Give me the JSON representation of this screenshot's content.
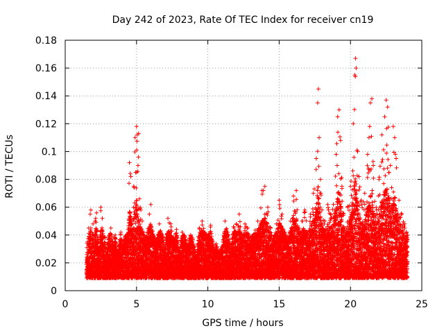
{
  "chart_data": {
    "type": "scatter",
    "title": "Day 242 of 2023, Rate Of TEC Index for receiver cn19",
    "xlabel": "GPS time / hours",
    "ylabel": "ROTI / TECUs",
    "xlim": [
      0,
      25
    ],
    "ylim": [
      0,
      0.18
    ],
    "xticks": [
      0,
      5,
      10,
      15,
      20,
      25
    ],
    "xtick_labels": [
      "0",
      "5",
      "10",
      "15",
      "20",
      "25"
    ],
    "yticks": [
      0,
      0.02,
      0.04,
      0.06,
      0.08,
      0.1,
      0.12,
      0.14,
      0.16,
      0.18
    ],
    "ytick_labels": [
      "0",
      "0.02",
      "0.04",
      "0.06",
      "0.08",
      "0.1",
      "0.12",
      "0.14",
      "0.16",
      "0.18"
    ],
    "grid": true,
    "marker": "+",
    "color": "#ff0000",
    "x_range_of_data": [
      1.5,
      24.0
    ],
    "series": [
      {
        "name": "ROTI",
        "points": [
          [
            1.5,
            0.02
          ],
          [
            1.55,
            0.035
          ],
          [
            1.6,
            0.015
          ],
          [
            1.65,
            0.045
          ],
          [
            1.7,
            0.028
          ],
          [
            1.75,
            0.055
          ],
          [
            1.8,
            0.058
          ],
          [
            1.85,
            0.012
          ],
          [
            1.9,
            0.04
          ],
          [
            1.95,
            0.048
          ],
          [
            2.0,
            0.022
          ],
          [
            2.1,
            0.05
          ],
          [
            2.2,
            0.056
          ],
          [
            2.3,
            0.03
          ],
          [
            2.4,
            0.018
          ],
          [
            2.5,
            0.06
          ],
          [
            2.6,
            0.052
          ],
          [
            2.7,
            0.025
          ],
          [
            2.8,
            0.038
          ],
          [
            2.9,
            0.014
          ],
          [
            3.0,
            0.033
          ],
          [
            3.2,
            0.045
          ],
          [
            3.4,
            0.028
          ],
          [
            3.5,
            0.04
          ],
          [
            3.7,
            0.02
          ],
          [
            3.9,
            0.042
          ],
          [
            4.0,
            0.03
          ],
          [
            4.2,
            0.038
          ],
          [
            4.4,
            0.044
          ],
          [
            4.5,
            0.092
          ],
          [
            4.6,
            0.082
          ],
          [
            4.7,
            0.048
          ],
          [
            4.8,
            0.075
          ],
          [
            4.9,
            0.11
          ],
          [
            5.0,
            0.118
          ],
          [
            5.05,
            0.112
          ],
          [
            5.1,
            0.09
          ],
          [
            5.15,
            0.113
          ],
          [
            5.2,
            0.066
          ],
          [
            5.3,
            0.058
          ],
          [
            5.4,
            0.05
          ],
          [
            5.5,
            0.042
          ],
          [
            5.7,
            0.035
          ],
          [
            5.9,
            0.055
          ],
          [
            6.0,
            0.062
          ],
          [
            6.2,
            0.038
          ],
          [
            6.4,
            0.03
          ],
          [
            6.6,
            0.048
          ],
          [
            6.8,
            0.04
          ],
          [
            7.0,
            0.025
          ],
          [
            7.2,
            0.052
          ],
          [
            7.4,
            0.048
          ],
          [
            7.6,
            0.035
          ],
          [
            7.8,
            0.044
          ],
          [
            8.0,
            0.02
          ],
          [
            8.2,
            0.042
          ],
          [
            8.4,
            0.036
          ],
          [
            8.6,
            0.028
          ],
          [
            8.8,
            0.04
          ],
          [
            9.0,
            0.032
          ],
          [
            9.2,
            0.018
          ],
          [
            9.4,
            0.045
          ],
          [
            9.6,
            0.05
          ],
          [
            9.8,
            0.042
          ],
          [
            10.0,
            0.038
          ],
          [
            10.2,
            0.047
          ],
          [
            10.4,
            0.026
          ],
          [
            10.6,
            0.03
          ],
          [
            10.8,
            0.022
          ],
          [
            11.0,
            0.028
          ],
          [
            11.2,
            0.05
          ],
          [
            11.4,
            0.042
          ],
          [
            11.6,
            0.024
          ],
          [
            11.8,
            0.046
          ],
          [
            12.0,
            0.048
          ],
          [
            12.2,
            0.055
          ],
          [
            12.4,
            0.038
          ],
          [
            12.6,
            0.048
          ],
          [
            12.8,
            0.045
          ],
          [
            13.0,
            0.032
          ],
          [
            13.2,
            0.04
          ],
          [
            13.5,
            0.05
          ],
          [
            13.8,
            0.072
          ],
          [
            14.0,
            0.075
          ],
          [
            14.2,
            0.06
          ],
          [
            14.4,
            0.045
          ],
          [
            14.6,
            0.036
          ],
          [
            14.8,
            0.048
          ],
          [
            15.0,
            0.065
          ],
          [
            15.2,
            0.055
          ],
          [
            15.4,
            0.042
          ],
          [
            15.6,
            0.03
          ],
          [
            15.8,
            0.05
          ],
          [
            16.0,
            0.068
          ],
          [
            16.2,
            0.072
          ],
          [
            16.4,
            0.045
          ],
          [
            16.6,
            0.05
          ],
          [
            16.8,
            0.058
          ],
          [
            17.0,
            0.042
          ],
          [
            17.2,
            0.055
          ],
          [
            17.4,
            0.07
          ],
          [
            17.6,
            0.095
          ],
          [
            17.7,
            0.135
          ],
          [
            17.75,
            0.145
          ],
          [
            17.8,
            0.11
          ],
          [
            17.9,
            0.08
          ],
          [
            18.0,
            0.058
          ],
          [
            18.2,
            0.05
          ],
          [
            18.4,
            0.062
          ],
          [
            18.6,
            0.055
          ],
          [
            18.8,
            0.062
          ],
          [
            19.0,
            0.098
          ],
          [
            19.1,
            0.125
          ],
          [
            19.2,
            0.13
          ],
          [
            19.3,
            0.108
          ],
          [
            19.4,
            0.075
          ],
          [
            19.6,
            0.045
          ],
          [
            19.8,
            0.06
          ],
          [
            20.0,
            0.075
          ],
          [
            20.2,
            0.12
          ],
          [
            20.3,
            0.155
          ],
          [
            20.35,
            0.167
          ],
          [
            20.4,
            0.16
          ],
          [
            20.5,
            0.1
          ],
          [
            20.6,
            0.082
          ],
          [
            20.8,
            0.062
          ],
          [
            21.0,
            0.07
          ],
          [
            21.2,
            0.098
          ],
          [
            21.3,
            0.11
          ],
          [
            21.4,
            0.135
          ],
          [
            21.5,
            0.138
          ],
          [
            21.6,
            0.09
          ],
          [
            21.8,
            0.06
          ],
          [
            22.0,
            0.08
          ],
          [
            22.2,
            0.112
          ],
          [
            22.4,
            0.125
          ],
          [
            22.5,
            0.137
          ],
          [
            22.6,
            0.132
          ],
          [
            22.8,
            0.09
          ],
          [
            23.0,
            0.118
          ],
          [
            23.1,
            0.11
          ],
          [
            23.2,
            0.095
          ],
          [
            23.4,
            0.065
          ],
          [
            23.6,
            0.055
          ],
          [
            23.8,
            0.048
          ],
          [
            24.0,
            0.04
          ]
        ]
      }
    ],
    "band_model": {
      "description": "dense base band of points between 0.005 and the upper envelope",
      "floor": 0.005,
      "base_upper": 0.035
    }
  }
}
